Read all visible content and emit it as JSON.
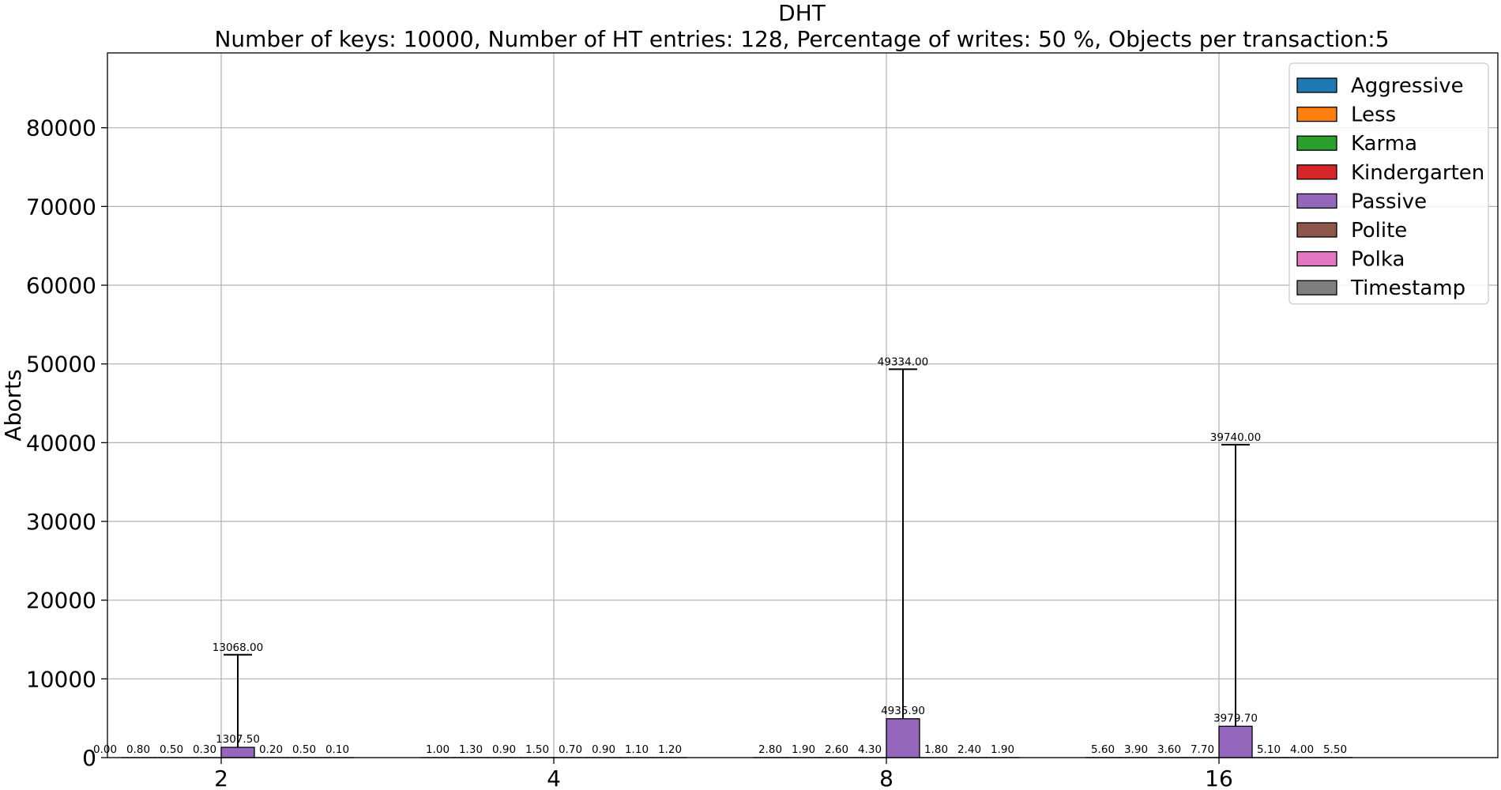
{
  "chart_data": {
    "type": "bar",
    "title": "DHT",
    "subtitle": "Number of keys: 10000, Number of HT entries: 128, Percentage of writes: 50 %, Objects per transaction:5",
    "xlabel": "",
    "ylabel": "Aborts",
    "categories": [
      "2",
      "4",
      "8",
      "16"
    ],
    "ylim": [
      0,
      89500
    ],
    "yticks": [
      0,
      10000,
      20000,
      30000,
      40000,
      50000,
      60000,
      70000,
      80000
    ],
    "grid": true,
    "legend_position": "top-right",
    "series": [
      {
        "name": "Aggressive",
        "color": "#1f77b4",
        "values": [
          0.0,
          1.0,
          2.8,
          5.6
        ],
        "labels": [
          "0.00",
          "1.00",
          "2.80",
          "5.60"
        ]
      },
      {
        "name": "Less",
        "color": "#ff7f0e",
        "values": [
          0.8,
          1.3,
          1.9,
          3.9
        ],
        "labels": [
          "0.80",
          "1.30",
          "1.90",
          "3.90"
        ]
      },
      {
        "name": "Karma",
        "color": "#2ca02c",
        "values": [
          0.5,
          0.9,
          2.6,
          3.6
        ],
        "labels": [
          "0.50",
          "0.90",
          "2.60",
          "3.60"
        ]
      },
      {
        "name": "Kindergarten",
        "color": "#d62728",
        "values": [
          0.3,
          1.5,
          4.3,
          7.7
        ],
        "labels": [
          "0.30",
          "1.50",
          "4.30",
          "7.70"
        ]
      },
      {
        "name": "Passive",
        "color": "#9467bd",
        "values": [
          1307.5,
          0.7,
          4935.9,
          3979.7
        ],
        "labels": [
          "1307.50",
          "0.70",
          "4935.90",
          "3979.70"
        ],
        "error_top": [
          13068.0,
          null,
          49334.0,
          39740.0
        ],
        "error_labels": [
          "13068.00",
          null,
          "49334.00",
          "39740.00"
        ]
      },
      {
        "name": "Polite",
        "color": "#8c564b",
        "values": [
          0.2,
          0.9,
          1.8,
          5.1
        ],
        "labels": [
          "0.20",
          "0.90",
          "1.80",
          "5.10"
        ]
      },
      {
        "name": "Polka",
        "color": "#e377c2",
        "values": [
          0.5,
          1.1,
          2.4,
          4.0
        ],
        "labels": [
          "0.50",
          "1.10",
          "2.40",
          "4.00"
        ]
      },
      {
        "name": "Timestamp",
        "color": "#7f7f7f",
        "values": [
          0.1,
          1.2,
          1.9,
          5.5
        ],
        "labels": [
          "0.10",
          "1.20",
          "1.90",
          "5.50"
        ]
      }
    ]
  }
}
